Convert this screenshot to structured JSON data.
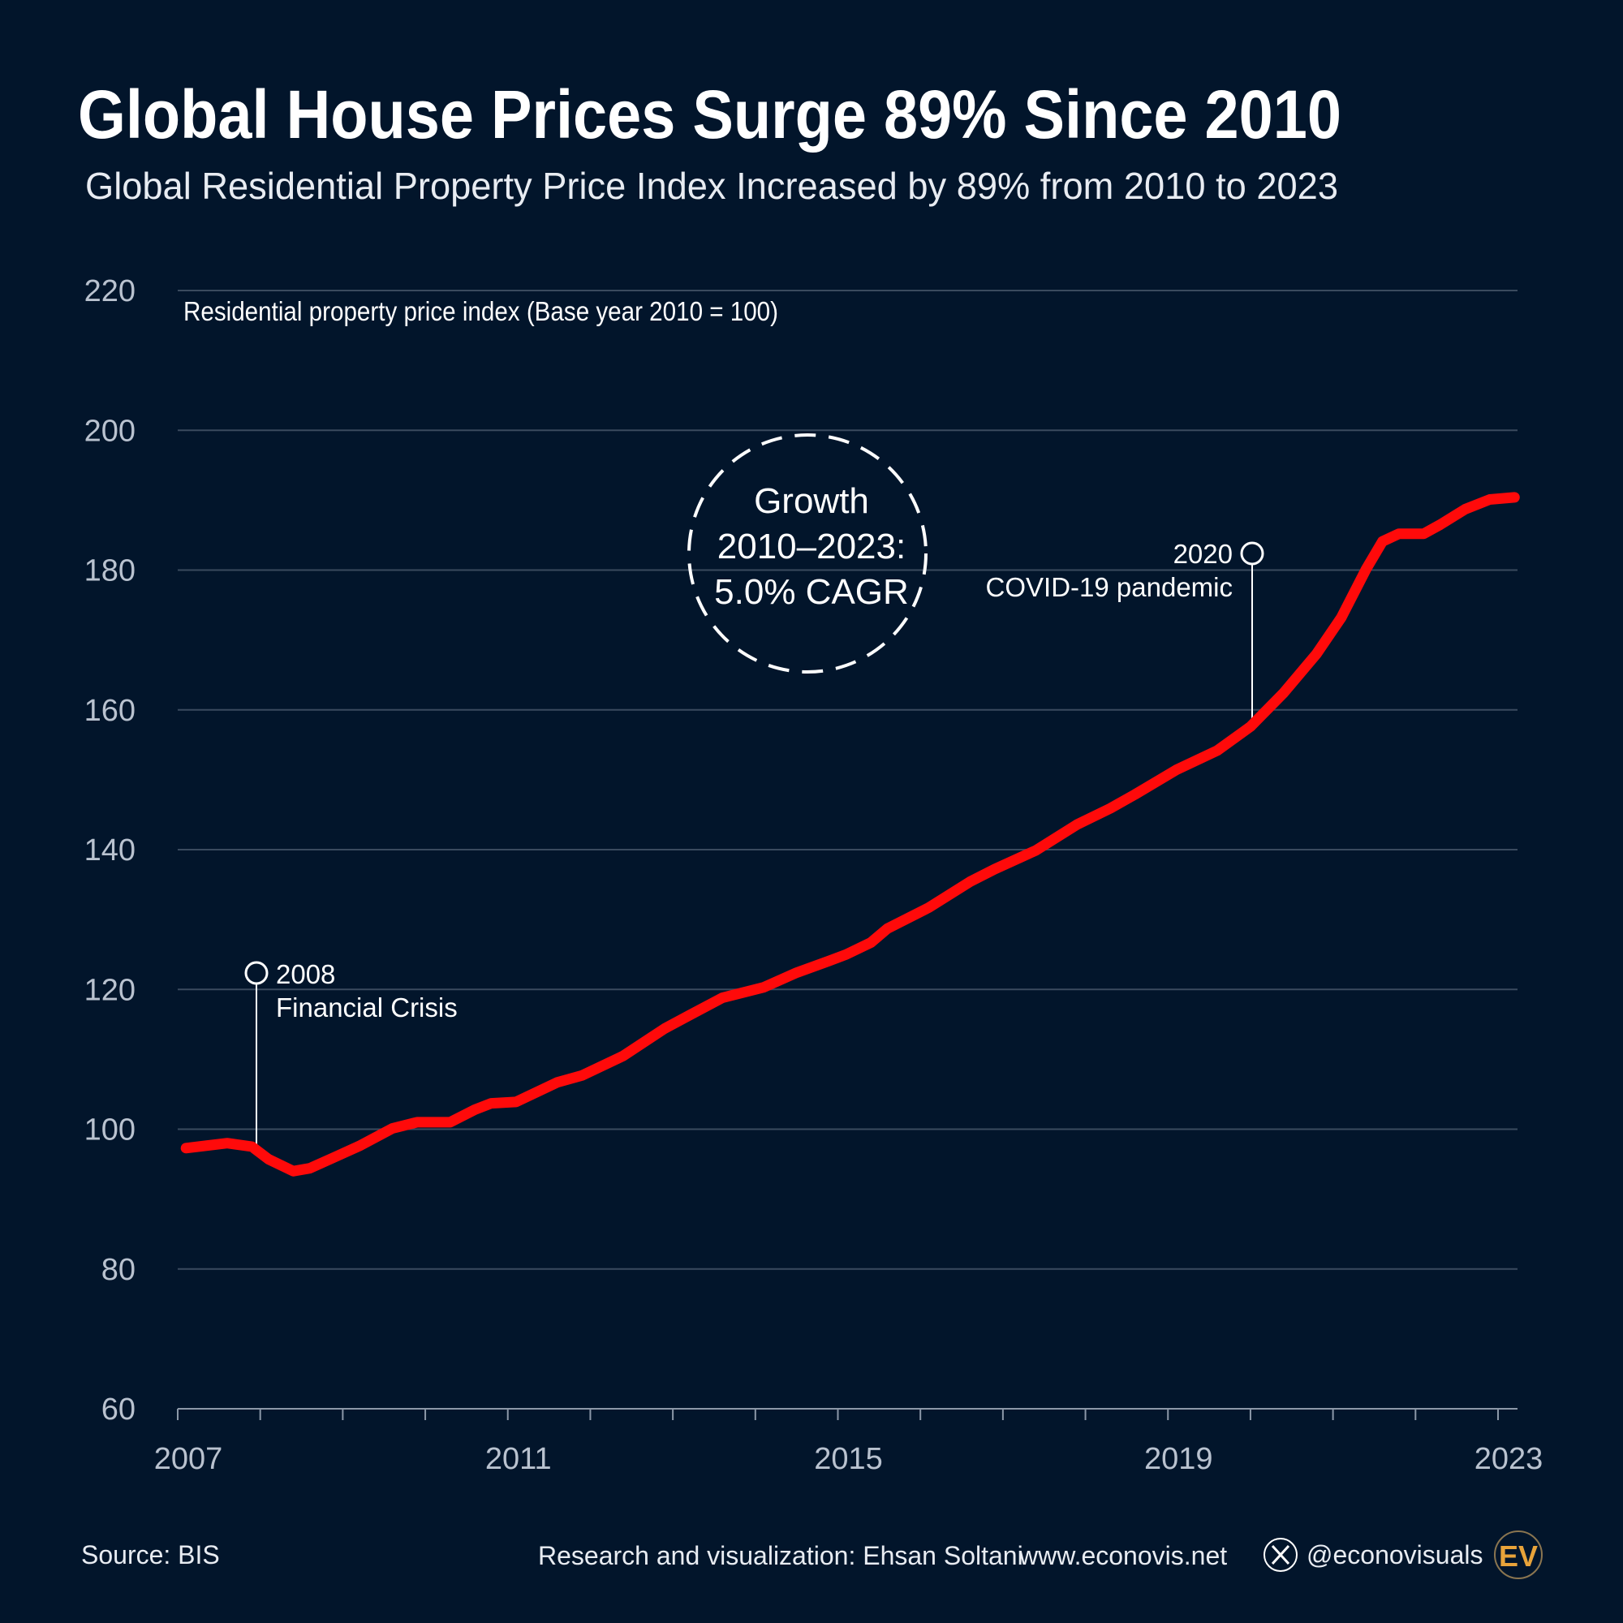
{
  "title": "Global House Prices Surge 89% Since 2010",
  "subtitle": "Global Residential Property Price Index Increased by 89% from 2010 to 2023",
  "chart_data": {
    "type": "line",
    "title": "Global House Prices Surge 89% Since 2010",
    "subtitle": "Global Residential Property Price Index Increased by 89% from 2010 to 2023",
    "ylabel": "Residential property price index (Base year 2010 = 100)",
    "xlim": [
      2007,
      2023
    ],
    "ylim": [
      60,
      220
    ],
    "yticks": [
      60,
      80,
      100,
      120,
      140,
      160,
      180,
      200,
      220
    ],
    "xticks": [
      2007,
      2011,
      2015,
      2019,
      2023
    ],
    "grid": true,
    "line_color": "#ff0a0a",
    "series": [
      {
        "x": [
          2007.1,
          2007.6,
          2007.9,
          2008.1,
          2008.4,
          2008.6,
          2008.9,
          2009.2,
          2009.6,
          2009.9,
          2010.3,
          2010.6,
          2010.8,
          2011.1,
          2011.6,
          2011.9,
          2012.4,
          2012.9,
          2013.2,
          2013.6,
          2014.1,
          2014.5,
          2014.9,
          2015.1,
          2015.4,
          2015.6,
          2016.1,
          2016.6,
          2016.9,
          2017.4,
          2017.9,
          2018.3,
          2018.6,
          2019.1,
          2019.6,
          2020.0,
          2020.4,
          2020.8,
          2021.1,
          2021.4,
          2021.6,
          2021.8,
          2022.1,
          2022.3,
          2022.6,
          2022.9,
          2023.2
        ],
        "y": [
          97.3,
          98.0,
          97.5,
          95.7,
          94.0,
          94.4,
          96.0,
          97.6,
          100.1,
          101.0,
          101.0,
          102.8,
          103.7,
          103.9,
          106.7,
          107.7,
          110.5,
          114.4,
          116.3,
          118.8,
          120.3,
          122.4,
          124.1,
          125.0,
          126.7,
          128.7,
          131.7,
          135.4,
          137.2,
          139.9,
          143.6,
          145.9,
          147.9,
          151.4,
          154.2,
          157.6,
          162.4,
          168.0,
          173.2,
          180.1,
          184.1,
          185.2,
          185.2,
          186.5,
          188.7,
          190.1,
          190.4
        ]
      }
    ],
    "annotations": [
      {
        "year": "2008",
        "label": "Financial Crisis"
      },
      {
        "year": "2020",
        "label": "COVID-19 pandemic"
      }
    ],
    "callout": {
      "line1": "Growth",
      "line2": "2010–2023:",
      "line3": "5.0% CAGR"
    }
  },
  "footer": {
    "source": "Source: BIS",
    "credit": "Research and visualization: Ehsan Soltani",
    "website": "www.econovis.net",
    "handle": "@econovisuals",
    "logo_text": "EV",
    "logo_color": "#e8a33a"
  }
}
